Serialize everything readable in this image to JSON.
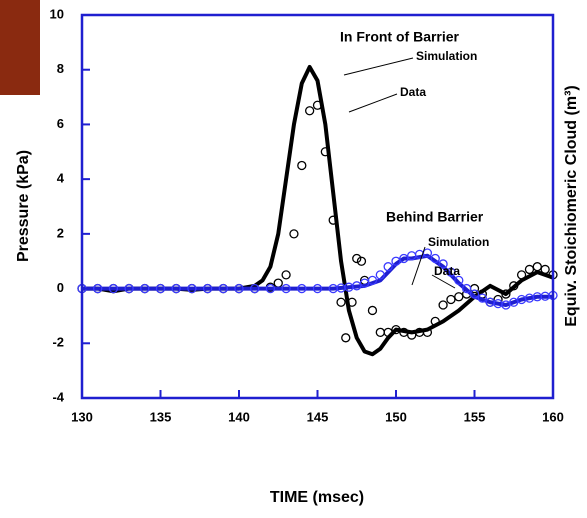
{
  "chart_data": {
    "type": "scatter",
    "xlabel": "TIME (msec)",
    "ylabel": "Pressure (kPa)",
    "y2label": "Equiv. Stoichiomeric Cloud (m³)",
    "annotations": [
      "In Front of Barrier",
      "Behind Barrier"
    ],
    "xlim": [
      130,
      160
    ],
    "xticks": [
      130,
      135,
      140,
      145,
      150,
      155,
      160
    ],
    "ylim": [
      -4,
      10
    ],
    "yticks": [
      -4,
      -2,
      0,
      2,
      4,
      6,
      8,
      10
    ],
    "series": [
      {
        "name": "Simulation",
        "color": "#000000",
        "marker": "line",
        "x": [
          130,
          131,
          132,
          133,
          134,
          135,
          136,
          137,
          138,
          139,
          140,
          141,
          141.5,
          142,
          142.5,
          143,
          143.5,
          144,
          144.5,
          145,
          145.5,
          146,
          146.5,
          147,
          147.5,
          148,
          148.5,
          149,
          149.5,
          150,
          151,
          152,
          153,
          154,
          155,
          156,
          157,
          158,
          159,
          160
        ],
        "values": [
          0,
          0,
          -0.1,
          0,
          0,
          0,
          0,
          -0.05,
          0,
          0,
          0,
          0.1,
          0.3,
          0.8,
          2,
          4,
          6,
          7.5,
          8.1,
          7.6,
          6,
          3.5,
          1,
          -0.8,
          -1.8,
          -2.3,
          -2.4,
          -2.2,
          -1.8,
          -1.5,
          -1.6,
          -1.5,
          -1.2,
          -0.8,
          -0.3,
          0.1,
          -0.2,
          0.3,
          0.6,
          0.4
        ]
      },
      {
        "name": "Data",
        "color": "#000000",
        "marker": "circle",
        "x": [
          130,
          131,
          132,
          133,
          134,
          135,
          136,
          137,
          138,
          139,
          140,
          141,
          142,
          142.5,
          143,
          143.5,
          144,
          144.5,
          145,
          145.5,
          146,
          146.5,
          146.8,
          147.2,
          147.5,
          147.8,
          148,
          148.5,
          149,
          149.5,
          150,
          150.5,
          151,
          151.5,
          152,
          152.5,
          153,
          153.5,
          154,
          154.5,
          155,
          155.5,
          156,
          156.5,
          157,
          157.5,
          158,
          158.5,
          159,
          159.5,
          160
        ],
        "values": [
          0,
          0,
          0,
          0,
          0,
          0,
          0,
          0,
          0,
          0,
          0,
          0,
          0.05,
          0.2,
          0.5,
          2,
          4.5,
          6.5,
          6.7,
          5,
          2.5,
          -0.5,
          -1.8,
          -0.5,
          1.1,
          1,
          0.3,
          -0.8,
          -1.6,
          -1.6,
          -1.5,
          -1.6,
          -1.7,
          -1.6,
          -1.6,
          -1.2,
          -0.6,
          -0.4,
          -0.3,
          -0.2,
          0,
          -0.2,
          -0.5,
          -0.4,
          -0.2,
          0.1,
          0.5,
          0.7,
          0.8,
          0.7,
          0.5
        ]
      },
      {
        "name": "Simulation",
        "color": "#1f1fd0",
        "marker": "line",
        "x": [
          130,
          132,
          134,
          136,
          138,
          140,
          142,
          144,
          146,
          147,
          148,
          149,
          150,
          150.5,
          151,
          152,
          153,
          154,
          155,
          156,
          157,
          158,
          159,
          160
        ],
        "values": [
          0,
          0,
          0,
          0,
          0,
          0,
          0,
          0,
          0,
          0.05,
          0.1,
          0.3,
          0.9,
          1.1,
          1.1,
          1.2,
          0.8,
          0.2,
          -0.3,
          -0.5,
          -0.6,
          -0.4,
          -0.3,
          -0.3
        ]
      },
      {
        "name": "Data",
        "color": "#3a3aff",
        "marker": "circle",
        "x": [
          130,
          131,
          132,
          133,
          134,
          135,
          136,
          137,
          138,
          139,
          140,
          141,
          142,
          143,
          144,
          145,
          146,
          146.5,
          147,
          147.5,
          148,
          148.5,
          149,
          149.5,
          150,
          150.5,
          151,
          151.5,
          152,
          152.5,
          153,
          153.5,
          154,
          154.5,
          155,
          155.5,
          156,
          156.5,
          157,
          157.5,
          158,
          158.5,
          159,
          159.5,
          160
        ],
        "values": [
          0,
          0,
          0,
          0,
          0,
          0,
          0,
          0,
          0,
          0,
          0,
          0,
          0,
          0,
          0,
          0,
          0,
          0.02,
          0.05,
          0.1,
          0.2,
          0.3,
          0.5,
          0.8,
          1,
          1.1,
          1.2,
          1.25,
          1.3,
          1.1,
          0.9,
          0.6,
          0.3,
          0,
          -0.2,
          -0.35,
          -0.5,
          -0.55,
          -0.6,
          -0.5,
          -0.4,
          -0.35,
          -0.3,
          -0.28,
          -0.25
        ]
      }
    ]
  }
}
